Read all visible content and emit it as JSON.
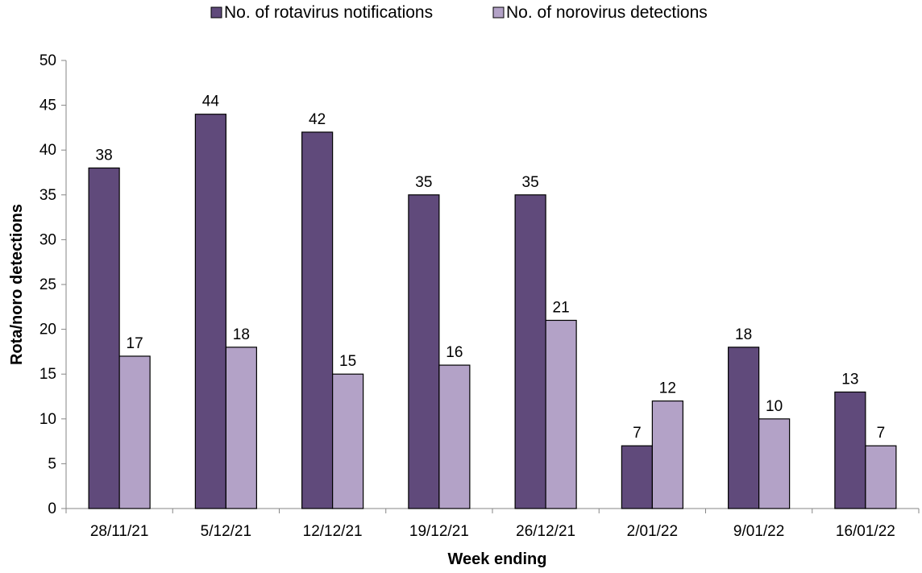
{
  "chart_data": {
    "type": "bar",
    "title": "",
    "xlabel": "Week ending",
    "ylabel": "Rota/noro detections",
    "ylim": [
      0,
      50
    ],
    "yticks": [
      0,
      5,
      10,
      15,
      20,
      25,
      30,
      35,
      40,
      45,
      50
    ],
    "grid": false,
    "legend_position": "top",
    "categories": [
      "28/11/21",
      "5/12/21",
      "12/12/21",
      "19/12/21",
      "26/12/21",
      "2/01/22",
      "9/01/22",
      "16/01/22"
    ],
    "series": [
      {
        "name": "No. of rotavirus notifications",
        "color": "#604a7b",
        "values": [
          38,
          44,
          42,
          35,
          35,
          7,
          18,
          13
        ]
      },
      {
        "name": "No. of norovirus detections",
        "color": "#b3a2c7",
        "values": [
          17,
          18,
          15,
          16,
          21,
          12,
          10,
          7
        ]
      }
    ]
  }
}
